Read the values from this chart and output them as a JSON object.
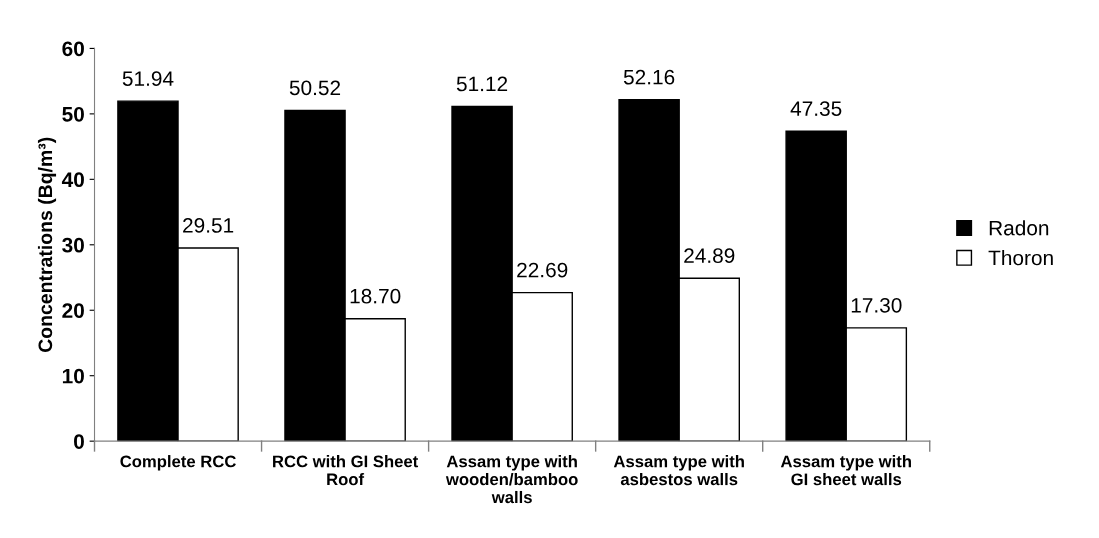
{
  "chart_data": {
    "type": "bar",
    "ylabel": "Concentrations (Bq/m³)",
    "categories": [
      "Complete RCC",
      "RCC with GI Sheet\nRoof",
      "Assam type with\nwooden/bamboo\nwalls",
      "Assam type with\nasbestos walls",
      "Assam type with\nGI sheet walls"
    ],
    "series": [
      {
        "name": "Radon",
        "color": "#000000",
        "values": [
          51.94,
          50.52,
          51.12,
          52.16,
          47.35
        ],
        "value_labels": [
          "51.94",
          "50.52",
          "51.12",
          "52.16",
          "47.35"
        ]
      },
      {
        "name": "Thoron",
        "color": "#ffffff",
        "values": [
          29.51,
          18.7,
          22.69,
          24.89,
          17.3
        ],
        "value_labels": [
          "29.51",
          "18.70",
          "22.69",
          "24.89",
          "17.30"
        ]
      }
    ],
    "ylim": [
      0,
      60
    ],
    "yticks": [
      0,
      10,
      20,
      30,
      40,
      50,
      60
    ],
    "grid": false,
    "legend": "right"
  }
}
